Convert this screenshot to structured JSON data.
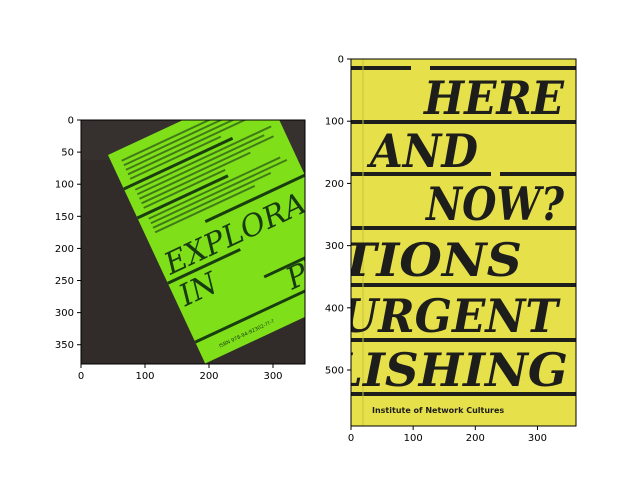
{
  "chart_data": [
    {
      "type": "image",
      "title": "",
      "xlabel": "",
      "ylabel": "",
      "xlim": [
        0,
        350
      ],
      "ylim": [
        380,
        0
      ],
      "x_ticks": [
        0,
        100,
        200,
        300
      ],
      "y_ticks": [
        0,
        50,
        100,
        150,
        200,
        250,
        300,
        350
      ],
      "image": {
        "description_colors": {
          "background": "#2f2a28",
          "cover": "#7fe01a",
          "ink": "#163a12"
        },
        "cover_lines": [
          "EXPLORA",
          "IN",
          "PUB"
        ],
        "isbn_text": "ISBN 978-94-92302-??-?"
      }
    },
    {
      "type": "image",
      "title": "",
      "xlabel": "",
      "ylabel": "",
      "xlim": [
        0,
        362
      ],
      "ylim": [
        590,
        0
      ],
      "x_ticks": [
        0,
        100,
        200,
        300
      ],
      "y_ticks": [
        0,
        100,
        200,
        300,
        400,
        500
      ],
      "image": {
        "description_colors": {
          "background": "#e6e04a",
          "ink": "#1d1d1b"
        },
        "cover_lines": [
          "HERE",
          "AND",
          "NOW?",
          "TIONS",
          "URGENT",
          "LISHING"
        ],
        "publisher": "Institute of Network Cultures"
      }
    }
  ]
}
